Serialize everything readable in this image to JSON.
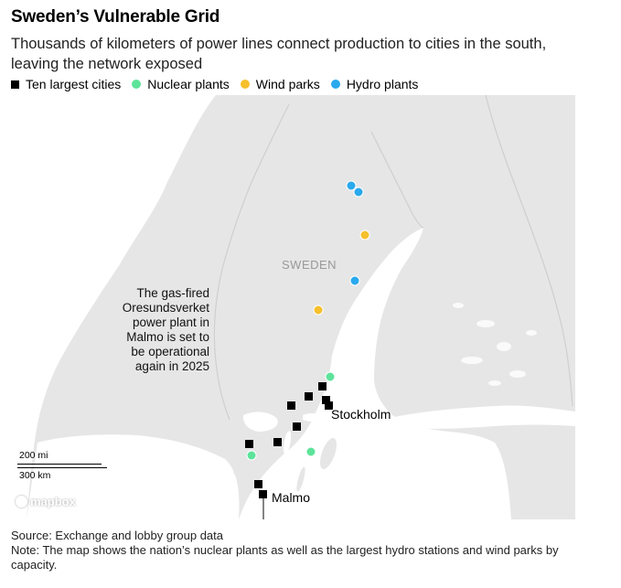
{
  "title": "Sweden’s Vulnerable Grid",
  "subtitle": "Thousands of kilometers of power lines connect production to cities in the south, leaving the network exposed",
  "legend": [
    {
      "label": "Ten largest cities",
      "shape": "square",
      "color": "#000000"
    },
    {
      "label": "Nuclear plants",
      "shape": "circle",
      "color": "#5ee39a"
    },
    {
      "label": "Wind parks",
      "shape": "circle",
      "color": "#f5c02c"
    },
    {
      "label": "Hydro plants",
      "shape": "circle",
      "color": "#2aa9ee"
    }
  ],
  "map": {
    "country_label": "SWEDEN",
    "annotation": "The gas-fired Oresundsverket power plant in Malmo is set to be operational again in 2025",
    "city_labels": {
      "stockholm": "Stockholm",
      "malmo": "Malmo"
    },
    "scale": {
      "miles": "200 mi",
      "km": "300 km"
    },
    "attribution": "mapbox",
    "colors": {
      "water": "#ffffff",
      "land": "#e6e6e6",
      "border": "#cfcfcf"
    }
  },
  "source": "Source: Exchange and lobby group data",
  "note": "Note: The map shows the nation’s nuclear plants as well as the largest hydro stations and wind parks by capacity."
}
